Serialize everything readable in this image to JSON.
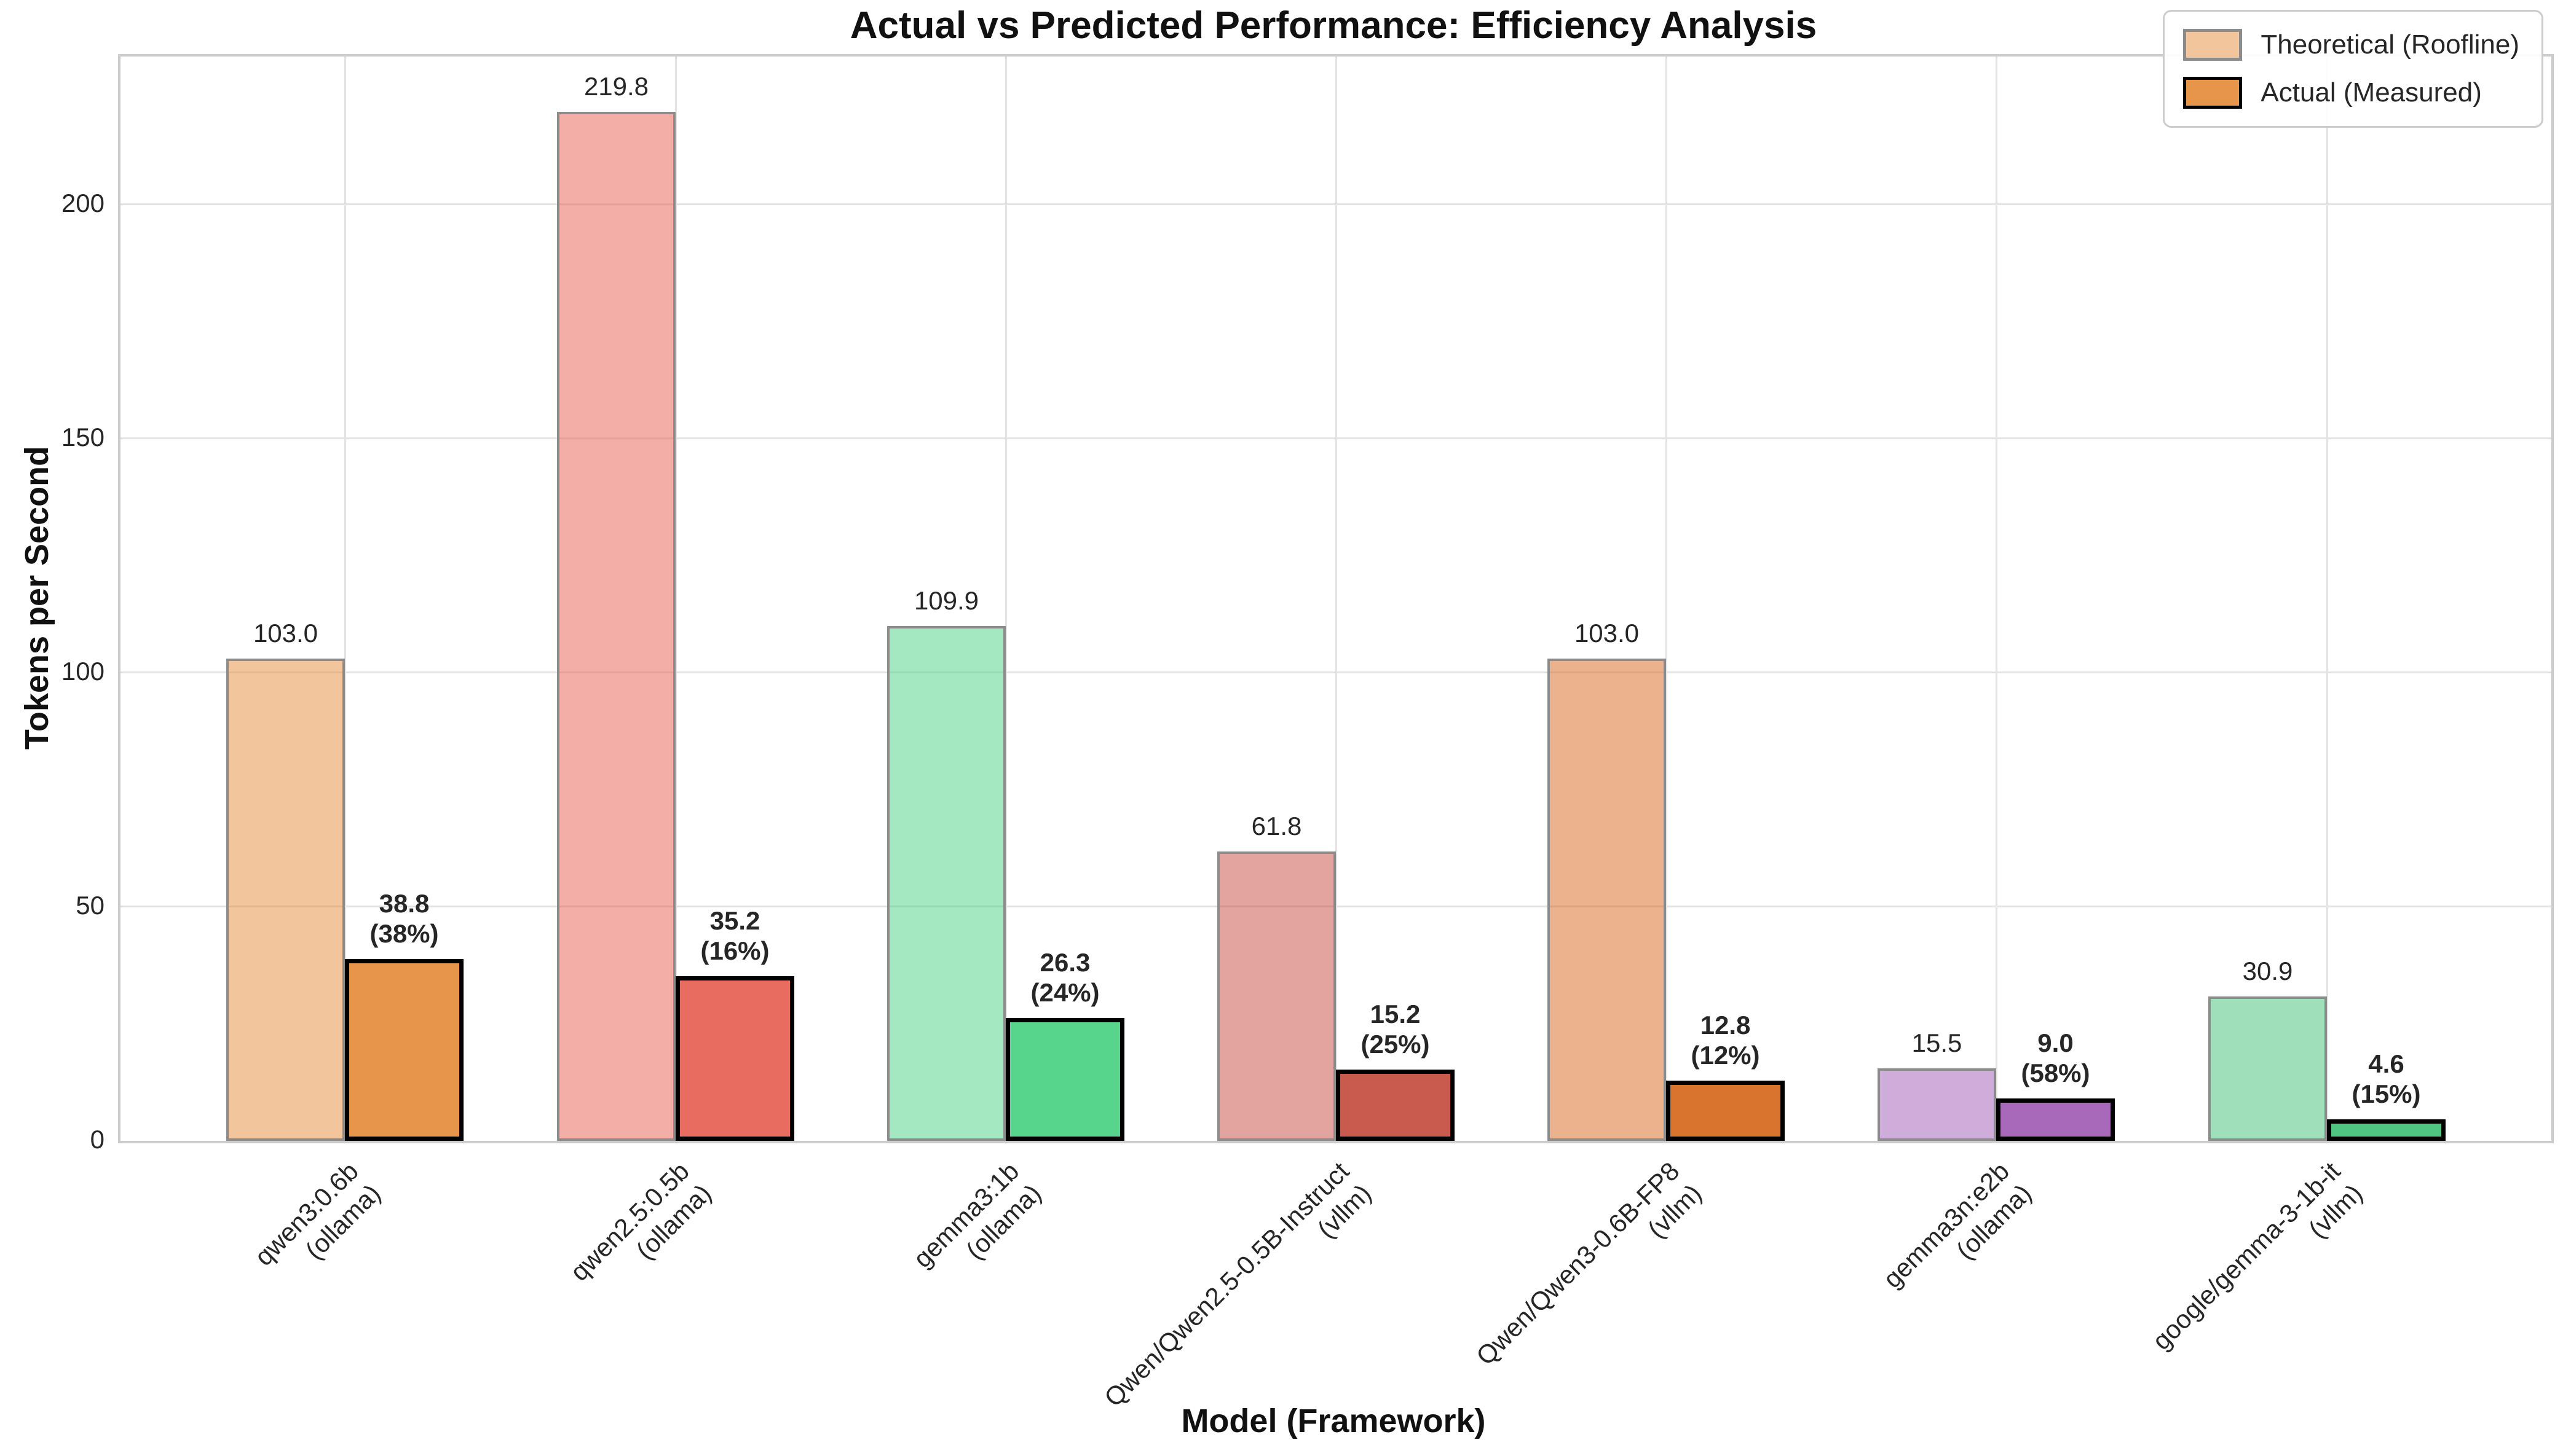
{
  "figure": {
    "title": "Actual vs Predicted Performance: Efficiency Analysis"
  },
  "axes": {
    "x_label": "Model (Framework)",
    "y_label": "Tokens per Second"
  },
  "legend": {
    "items": [
      {
        "label": "Theoretical (Roofline)",
        "fill": "rgba(232,149,76,0.55)",
        "edge": "#8c8c8c"
      },
      {
        "label": "Actual (Measured)",
        "fill": "#E8954C",
        "edge": "#000000"
      }
    ]
  },
  "colors": {
    "grid": "#e3e3e3",
    "spine": "#cccccc",
    "theoretical_edge": "#8c8c8c",
    "actual_edge": "#000000"
  },
  "chart_data": {
    "type": "bar",
    "title": "Actual vs Predicted Performance: Efficiency Analysis",
    "xlabel": "Model (Framework)",
    "ylabel": "Tokens per Second",
    "ylim": [
      0,
      231.6
    ],
    "y_ticks": [
      0,
      50,
      100,
      150,
      200
    ],
    "grid": true,
    "legend_position": "upper right",
    "categories": [
      "qwen3:0.6b (ollama)",
      "qwen2.5:0.5b (ollama)",
      "gemma3:1b (ollama)",
      "Qwen/Qwen2.5-0.5B-Instruct (vllm)",
      "Qwen/Qwen3-0.6B-FP8 (vllm)",
      "gemma3n:e2b (ollama)",
      "google/gemma-3-1b-it (vllm)"
    ],
    "series": [
      {
        "name": "Theoretical (Roofline)",
        "values": [
          103.0,
          219.8,
          109.9,
          61.8,
          103.0,
          15.5,
          30.9
        ]
      },
      {
        "name": "Actual (Measured)",
        "values": [
          38.8,
          35.2,
          26.3,
          15.2,
          12.8,
          9.0,
          4.6
        ]
      }
    ],
    "groups": [
      {
        "model": "qwen3:0.6b",
        "framework": "ollama",
        "theoretical": 103.0,
        "actual": 38.8,
        "efficiency_pct": 38,
        "color": "#E8954C"
      },
      {
        "model": "qwen2.5:0.5b",
        "framework": "ollama",
        "theoretical": 219.8,
        "actual": 35.2,
        "efficiency_pct": 16,
        "color": "#E96C60"
      },
      {
        "model": "gemma3:1b",
        "framework": "ollama",
        "theoretical": 109.9,
        "actual": 26.3,
        "efficiency_pct": 24,
        "color": "#58D58D"
      },
      {
        "model": "Qwen/Qwen2.5-0.5B-Instruct",
        "framework": "vllm",
        "theoretical": 61.8,
        "actual": 15.2,
        "efficiency_pct": 25,
        "color": "#C95A4E"
      },
      {
        "model": "Qwen/Qwen3-0.6B-FP8",
        "framework": "vllm",
        "theoretical": 103.0,
        "actual": 12.8,
        "efficiency_pct": 12,
        "color": "#D9742F"
      },
      {
        "model": "gemma3n:e2b",
        "framework": "ollama",
        "theoretical": 15.5,
        "actual": 9.0,
        "efficiency_pct": 58,
        "color": "#A869BB"
      },
      {
        "model": "google/gemma-3-1b-it",
        "framework": "vllm",
        "theoretical": 30.9,
        "actual": 4.6,
        "efficiency_pct": 15,
        "color": "#50C481"
      }
    ]
  }
}
